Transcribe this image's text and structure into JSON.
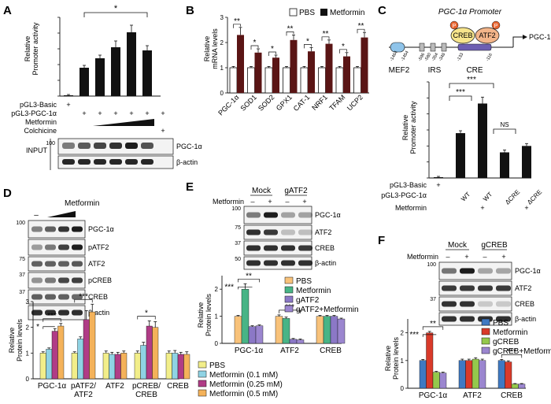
{
  "colors": {
    "black": "#111111",
    "dark_red": "#5a1515",
    "yellow": "#f2ee8a",
    "cyan": "#8fd3e4",
    "magenta": "#b03c86",
    "orange": "#f4b25a",
    "light_orange": "#f8c27a",
    "green": "#48b486",
    "purple": "#8b78c6",
    "blue": "#3f79c2",
    "red": "#d93a2a",
    "lime": "#94c84c",
    "lavender": "#9b86cf",
    "mef2": "#8fc4ea",
    "creb_box": "#f7e58c",
    "atf2_box": "#f3b58a",
    "p_circle": "#e8642f",
    "cre_bar": "#6d5fb2"
  },
  "panel_labels": {
    "a": "A",
    "b": "B",
    "c": "C",
    "d": "D",
    "e": "E",
    "f": "F"
  },
  "common": {
    "star1": "*",
    "star2": "**",
    "star3": "***",
    "ns": "NS",
    "plus": "+",
    "minus": "–",
    "metformin": "Metformin",
    "pgc": "PGC-1α",
    "actin": "β-actin",
    "atf2": "ATF2",
    "creb": "CREB",
    "patf2": "pATF2",
    "pcreb": "pCREB",
    "rel_protein_1": "Relative",
    "rel_protein_2": "Protein levels"
  },
  "panel_a": {
    "ylabel_1": "Relative",
    "ylabel_2": "Promoter activity",
    "rows": {
      "basic": "pGL3-Basic",
      "pgc": "pGL3-PGC-1α",
      "metformin": "Metformin",
      "colchicine": "Colchicine"
    },
    "input_label": "INPUT",
    "mw": "100",
    "chart_data": {
      "type": "bar",
      "categories": [
        "pGL3-Basic",
        "PGC-1α",
        "PGC-1α+Met1",
        "PGC-1α+Met2",
        "PGC-1α+Met3",
        "PGC-1α+Colchicine"
      ],
      "values": [
        1,
        36,
        48,
        62,
        81,
        58
      ],
      "errors": [
        1,
        3,
        4,
        8,
        9,
        6
      ],
      "ylim": [
        0,
        100
      ],
      "ylabel": "Relative Promoter activity",
      "annotation": "*"
    }
  },
  "panel_b": {
    "ylabel_1": "Relative",
    "ylabel_2": "mRNA levels",
    "legend": [
      "PBS",
      "Metformin"
    ],
    "chart_data": {
      "type": "bar",
      "categories": [
        "PGC-1α",
        "SOD1",
        "SOD2",
        "GPX1",
        "CAT-1",
        "NRF1",
        "TFAM",
        "UCP2"
      ],
      "series": [
        {
          "name": "PBS",
          "values": [
            1,
            1,
            1,
            1,
            1,
            1,
            1,
            1
          ],
          "errors": [
            0.05,
            0.05,
            0.05,
            0.05,
            0.05,
            0.05,
            0.05,
            0.05
          ]
        },
        {
          "name": "Metformin",
          "values": [
            2.3,
            1.6,
            1.4,
            2.1,
            1.65,
            1.95,
            1.45,
            2.2
          ],
          "errors": [
            0.3,
            0.15,
            0.1,
            0.2,
            0.15,
            0.15,
            0.15,
            0.2
          ]
        }
      ],
      "ylim": [
        0,
        3
      ],
      "significance": [
        "**",
        "*",
        "*",
        "**",
        "*",
        "**",
        "*",
        "**"
      ]
    }
  },
  "panel_c": {
    "promoter_title": "PGC-1α Promoter",
    "sites": {
      "mef2": "MEF2",
      "irs": "IRS",
      "cre": "CRE",
      "p": "P"
    },
    "positions": [
      "-1464",
      "-1454",
      "-596",
      "-580",
      "-354",
      "-348",
      "-133",
      "-116"
    ],
    "arrow_label": "PGC-1α",
    "ylabel_1": "Relative",
    "ylabel_2": "Promoter activity",
    "rows": {
      "basic": "pGL3-Basic",
      "pgc": "pGL3-PGC-1α",
      "metformin": "Metformin"
    },
    "col_labels": [
      "WT",
      "WT",
      "ΔCRE",
      "ΔCRE"
    ],
    "chart_data": {
      "type": "bar",
      "categories": [
        "pGL3-Basic",
        "WT",
        "WT+Met",
        "ΔCRE",
        "ΔCRE+Met"
      ],
      "values": [
        1,
        56,
        93,
        32,
        40
      ],
      "errors": [
        1,
        3,
        8,
        3,
        3
      ],
      "ylim": [
        0,
        120
      ],
      "annotations": [
        "***",
        "***",
        "NS"
      ]
    }
  },
  "panel_d": {
    "blot_labels": [
      "PGC-1α",
      "pATF2",
      "ATF2",
      "pCREB",
      "CREB",
      "β-actin"
    ],
    "mw": [
      "100",
      "75",
      "75",
      "37",
      "37"
    ],
    "legend": [
      "PBS",
      "Metformin (0.1 mM)",
      "Metformin (0.25 mM)",
      "Metformin (0.5 mM)"
    ],
    "chart_data": {
      "type": "bar",
      "categories": [
        "PGC-1α",
        "pATF2/ATF2",
        "ATF2",
        "pCREB/CREB",
        "CREB"
      ],
      "category_lines": [
        [
          "PGC-1α"
        ],
        [
          "pATF2/",
          "ATF2"
        ],
        [
          "ATF2"
        ],
        [
          "pCREB/",
          "CREB"
        ],
        [
          "CREB"
        ]
      ],
      "series": [
        {
          "name": "PBS",
          "values": [
            1.0,
            1.0,
            1.0,
            1.0,
            1.0
          ],
          "errors": [
            0.05,
            0.05,
            0.08,
            0.08,
            0.08
          ]
        },
        {
          "name": "Metformin (0.1 mM)",
          "values": [
            1.15,
            1.55,
            0.95,
            1.3,
            1.0
          ],
          "errors": [
            0.05,
            0.08,
            0.08,
            0.12,
            0.1
          ]
        },
        {
          "name": "Metformin (0.25 mM)",
          "values": [
            1.85,
            2.3,
            0.95,
            2.05,
            0.95
          ],
          "errors": [
            0.1,
            0.35,
            0.08,
            0.2,
            0.08
          ]
        },
        {
          "name": "Metformin (0.5 mM)",
          "values": [
            2.05,
            2.6,
            1.0,
            2.0,
            0.95
          ],
          "errors": [
            0.1,
            0.3,
            0.08,
            0.22,
            0.1
          ]
        }
      ],
      "ylim": [
        0,
        3
      ],
      "yticks": [
        0,
        1,
        2,
        3
      ],
      "significance": [
        "***",
        "***",
        "",
        "*",
        ""
      ],
      "extra_significance": "*"
    }
  },
  "panel_e": {
    "groups": [
      "Mock",
      "gATF2"
    ],
    "blot_labels": [
      "PGC-1α",
      "ATF2",
      "CREB",
      "β-actin"
    ],
    "mw": [
      "100",
      "75",
      "37",
      "50"
    ],
    "legend": [
      "PBS",
      "Metformin",
      "gATF2",
      "gATF2+Metformin"
    ],
    "chart_data": {
      "type": "bar",
      "categories": [
        "PGC-1α",
        "ATF2",
        "CREB"
      ],
      "series": [
        {
          "name": "PBS",
          "values": [
            1.0,
            1.0,
            1.0
          ],
          "errors": [
            0.03,
            0.05,
            0.03
          ]
        },
        {
          "name": "Metformin",
          "values": [
            2.0,
            0.92,
            1.0
          ],
          "errors": [
            0.2,
            0.05,
            0.03
          ]
        },
        {
          "name": "gATF2",
          "values": [
            0.62,
            0.15,
            1.0
          ],
          "errors": [
            0.03,
            0.03,
            0.03
          ]
        },
        {
          "name": "gATF2+Metformin",
          "values": [
            0.65,
            0.13,
            0.9
          ],
          "errors": [
            0.03,
            0.03,
            0.03
          ]
        }
      ],
      "ylim": [
        0,
        2.5
      ],
      "yticks": [
        0,
        1,
        2
      ],
      "significance": [
        "**",
        "***",
        ""
      ],
      "extra_significance": "***"
    }
  },
  "panel_f": {
    "groups": [
      "Mock",
      "gCREB"
    ],
    "blot_labels": [
      "PGC-1α",
      "ATF2",
      "CREB",
      "β-actin"
    ],
    "mw": [
      "100",
      "37"
    ],
    "legend": [
      "PBS",
      "Metformin",
      "gCREB",
      "gCREB+Metformin"
    ],
    "chart_data": {
      "type": "bar",
      "categories": [
        "PGC-1α",
        "ATF2",
        "CREB"
      ],
      "series": [
        {
          "name": "PBS",
          "values": [
            1.0,
            1.0,
            1.0
          ],
          "errors": [
            0.04,
            0.05,
            0.04
          ]
        },
        {
          "name": "Metformin",
          "values": [
            2.0,
            1.0,
            0.95
          ],
          "errors": [
            0.05,
            0.05,
            0.04
          ]
        },
        {
          "name": "gCREB",
          "values": [
            0.58,
            1.05,
            0.15
          ],
          "errors": [
            0.03,
            0.05,
            0.02
          ]
        },
        {
          "name": "gCREB+Metformin",
          "values": [
            0.55,
            1.0,
            0.15
          ],
          "errors": [
            0.03,
            0.05,
            0.02
          ]
        }
      ],
      "ylim": [
        0,
        2.5
      ],
      "yticks": [
        0,
        1,
        2
      ],
      "significance": [
        "**",
        "",
        "***"
      ],
      "extra_significance": "***"
    }
  }
}
